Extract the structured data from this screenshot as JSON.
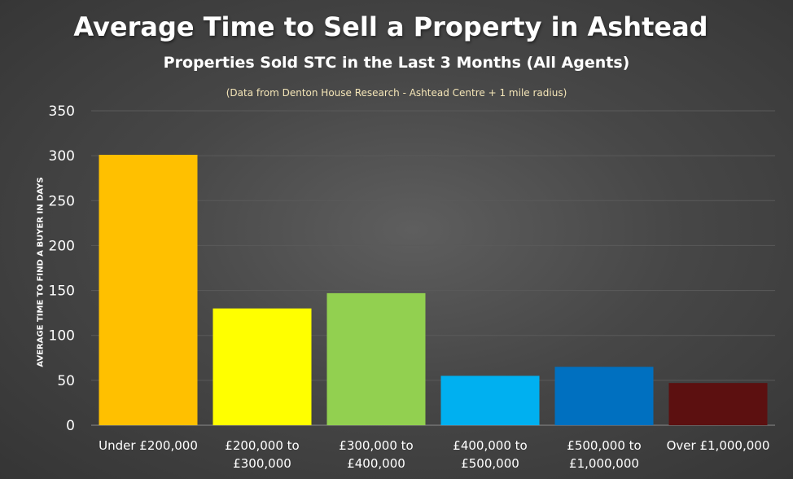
{
  "chart_data": {
    "type": "bar",
    "title": "Average Time to Sell a Property in Ashtead",
    "subtitle": "Properties Sold STC in the Last 3 Months (All Agents)",
    "source": "(Data from Denton House Research - Ashtead Centre + 1 mile radius)",
    "xlabel": "",
    "ylabel": "AVERAGE TIME TO FIND A BUYER IN DAYS",
    "ylim": [
      0,
      350
    ],
    "yticks": [
      0,
      50,
      100,
      150,
      200,
      250,
      300,
      350
    ],
    "grid": true,
    "categories": [
      [
        "Under £200,000"
      ],
      [
        "£200,000 to",
        "£300,000"
      ],
      [
        "£300,000 to",
        "£400,000"
      ],
      [
        "£400,000 to",
        "£500,000"
      ],
      [
        "£500,000 to",
        "£1,000,000"
      ],
      [
        "Over £1,000,000"
      ]
    ],
    "values": [
      301,
      130,
      147,
      55,
      65,
      47
    ],
    "colors": [
      "#ffc000",
      "#ffff00",
      "#92d050",
      "#00b0f0",
      "#0070c0",
      "#5c1010"
    ]
  }
}
